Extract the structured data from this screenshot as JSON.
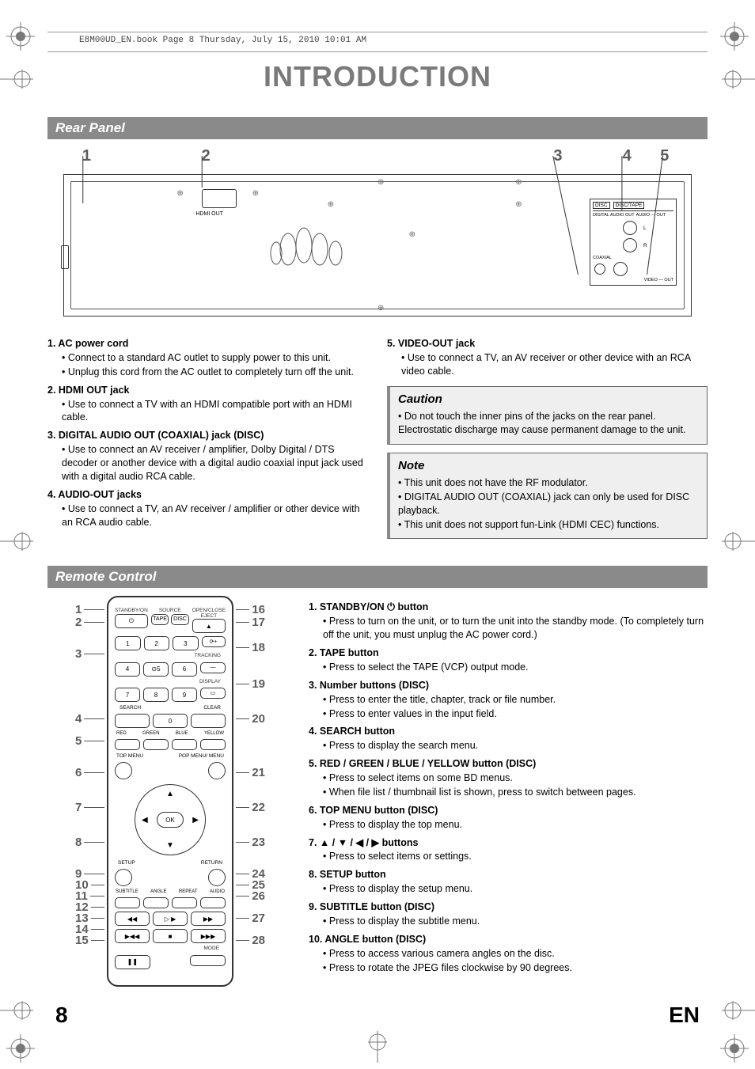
{
  "header": {
    "book_info": "E8M00UD_EN.book  Page 8  Thursday, July 15, 2010  10:01 AM",
    "main_title": "INTRODUCTION"
  },
  "rear_panel": {
    "section_title": "Rear Panel",
    "callouts": [
      "1",
      "2",
      "3",
      "4",
      "5"
    ],
    "callout_positions_pct": [
      3,
      22,
      78,
      89,
      96
    ],
    "jackbox_labels": {
      "disc": "DISC",
      "disctape": "DISC/TAPE",
      "digout": "DIGITAL\nAUDIO OUT",
      "audioout": "AUDIO — OUT",
      "coax": "COAXIAL",
      "video": "VIDEO — OUT",
      "l": "L",
      "r": "R"
    },
    "left_items": [
      {
        "num": "1.",
        "title": "AC power cord",
        "bullets": [
          "Connect to a standard AC outlet to supply power to this unit.",
          "Unplug this cord from the AC outlet to completely turn off the unit."
        ]
      },
      {
        "num": "2.",
        "title": "HDMI OUT jack",
        "bullets": [
          "Use to connect a TV with an HDMI compatible port with an HDMI cable."
        ]
      },
      {
        "num": "3.",
        "title": "DIGITAL AUDIO OUT (COAXIAL) jack (DISC)",
        "bullets": [
          "Use to connect an AV receiver / amplifier, Dolby Digital / DTS decoder or another device with a digital audio coaxial input jack used with a digital audio RCA cable."
        ]
      },
      {
        "num": "4.",
        "title": "AUDIO-OUT jacks",
        "bullets": [
          "Use to connect a TV, an AV receiver / amplifier or other device with an RCA audio cable."
        ]
      }
    ],
    "right_items": [
      {
        "num": "5.",
        "title": "VIDEO-OUT jack",
        "bullets": [
          "Use to connect a TV, an AV receiver or other device with an RCA video cable."
        ]
      }
    ],
    "caution": {
      "title": "Caution",
      "bullets": [
        "Do not touch the inner pins of the jacks on the rear panel. Electrostatic discharge may cause permanent damage to the unit."
      ]
    },
    "note": {
      "title": "Note",
      "bullets": [
        "This unit does not have the RF modulator.",
        "DIGITAL AUDIO OUT (COAXIAL) jack can only be used for DISC playback.",
        "This unit does not support fun-Link (HDMI CEC) functions."
      ]
    }
  },
  "remote": {
    "section_title": "Remote Control",
    "left_nums": [
      {
        "n": "1",
        "t": 10
      },
      {
        "n": "2",
        "t": 26
      },
      {
        "n": "3",
        "t": 66
      },
      {
        "n": "4",
        "t": 148
      },
      {
        "n": "5",
        "t": 176
      },
      {
        "n": "6",
        "t": 216
      },
      {
        "n": "7",
        "t": 260
      },
      {
        "n": "8",
        "t": 304
      },
      {
        "n": "9",
        "t": 344
      },
      {
        "n": "10",
        "t": 358
      },
      {
        "n": "11",
        "t": 372
      },
      {
        "n": "12",
        "t": 386
      },
      {
        "n": "13",
        "t": 400
      },
      {
        "n": "14",
        "t": 414
      },
      {
        "n": "15",
        "t": 428
      }
    ],
    "right_nums": [
      {
        "n": "16",
        "t": 10
      },
      {
        "n": "17",
        "t": 26
      },
      {
        "n": "18",
        "t": 58
      },
      {
        "n": "19",
        "t": 104
      },
      {
        "n": "20",
        "t": 148
      },
      {
        "n": "21",
        "t": 216
      },
      {
        "n": "22",
        "t": 260
      },
      {
        "n": "23",
        "t": 304
      },
      {
        "n": "24",
        "t": 344
      },
      {
        "n": "25",
        "t": 358
      },
      {
        "n": "26",
        "t": 372
      },
      {
        "n": "27",
        "t": 400
      },
      {
        "n": "28",
        "t": 428
      }
    ],
    "labels": {
      "standby": "STANDBY/ON",
      "source": "SOURCE",
      "eject": "OPEN/CLOSE\nEJECT",
      "tape": "TAPE",
      "disc": "DISC",
      "tracking": "TRACKING",
      "display": "DISPLAY",
      "search": "SEARCH",
      "clear": "CLEAR",
      "red": "RED",
      "green": "GREEN",
      "blue": "BLUE",
      "yellow": "YELLOW",
      "topmenu": "TOP MENU",
      "popup": "POP MENU/\nMENU",
      "ok": "OK",
      "setup": "SETUP",
      "return": "RETURN",
      "subtitle": "SUBTITLE",
      "angle": "ANGLE",
      "repeat": "REPEAT",
      "audio": "AUDIO",
      "mode": "MODE"
    },
    "desc_items": [
      {
        "num": "1.",
        "title": "STANDBY/ON ⏻ button",
        "bullets": [
          "Press to turn on the unit, or to turn the unit into the standby mode. (To completely turn off the unit, you must unplug the AC power cord.)"
        ]
      },
      {
        "num": "2.",
        "title": "TAPE button",
        "bullets": [
          "Press to select the TAPE (VCP) output mode."
        ]
      },
      {
        "num": "3.",
        "title": "Number buttons (DISC)",
        "bullets": [
          "Press to enter the title, chapter, track or file number.",
          "Press to enter values in the input field."
        ]
      },
      {
        "num": "4.",
        "title": "SEARCH button",
        "bullets": [
          "Press to display the search menu."
        ]
      },
      {
        "num": "5.",
        "title": "RED / GREEN / BLUE / YELLOW button (DISC)",
        "bullets": [
          "Press to select items on some BD menus.",
          "When file list / thumbnail list is shown, press to switch between pages."
        ]
      },
      {
        "num": "6.",
        "title": "TOP MENU button (DISC)",
        "bullets": [
          "Press to display the top menu."
        ]
      },
      {
        "num": "7.",
        "title": "▲ / ▼ / ◀ / ▶ buttons",
        "bullets": [
          "Press to select items or settings."
        ]
      },
      {
        "num": "8.",
        "title": "SETUP button",
        "bullets": [
          "Press to display the setup menu."
        ]
      },
      {
        "num": "9.",
        "title": "SUBTITLE button (DISC)",
        "bullets": [
          "Press to display the subtitle menu."
        ]
      },
      {
        "num": "10.",
        "title": "ANGLE button (DISC)",
        "bullets": [
          "Press to access various camera angles on the disc.",
          "Press to rotate the JPEG files clockwise by 90 degrees."
        ]
      }
    ]
  },
  "footer": {
    "page": "8",
    "lang": "EN"
  },
  "colors": {
    "section_bar_bg": "#8a8a8a",
    "title_gray": "#7a7a7a",
    "callout_bg": "#efefef",
    "num_gray": "#5b5b5b"
  }
}
